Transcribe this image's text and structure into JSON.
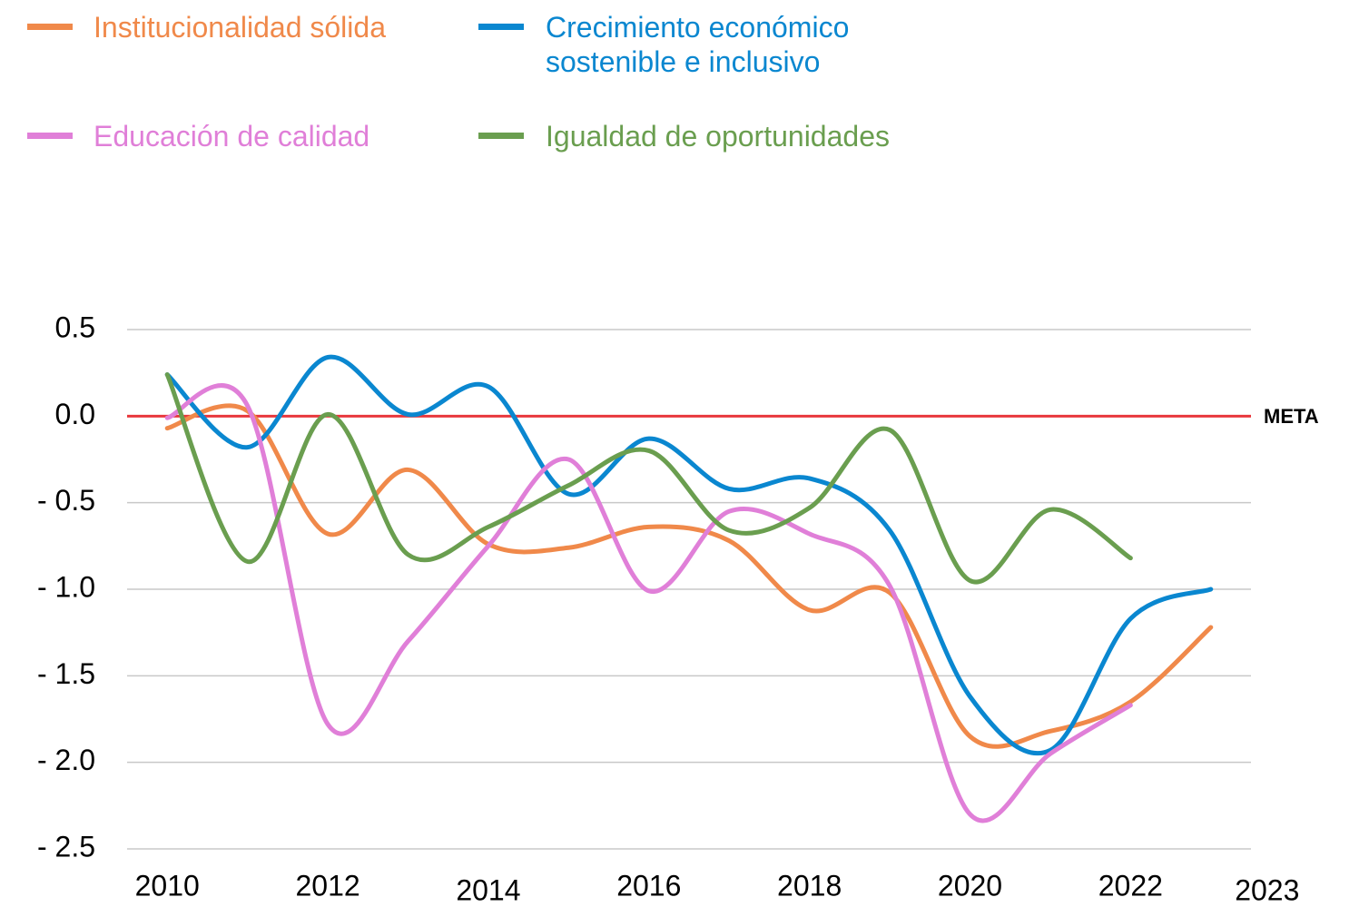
{
  "chart_data": {
    "type": "line",
    "x": [
      2010,
      2011,
      2012,
      2013,
      2014,
      2015,
      2016,
      2017,
      2018,
      2019,
      2020,
      2021,
      2022,
      2023
    ],
    "series": [
      {
        "name": "Institucionalidad sólida",
        "color": "#f0894a",
        "values": [
          -0.07,
          0.03,
          -0.68,
          -0.31,
          -0.74,
          -0.76,
          -0.64,
          -0.72,
          -1.12,
          -1.02,
          -1.85,
          -1.82,
          -1.65,
          -1.22
        ]
      },
      {
        "name": "Crecimiento económico sostenible e inclusivo",
        "color": "#0a87d0",
        "values": [
          0.24,
          -0.18,
          0.34,
          0.01,
          0.17,
          -0.45,
          -0.13,
          -0.42,
          -0.36,
          -0.66,
          -1.62,
          -1.93,
          -1.17,
          -1.0
        ]
      },
      {
        "name": "Educación de calidad",
        "color": "#e07fd8",
        "values": [
          -0.01,
          0.06,
          -1.78,
          -1.3,
          -0.75,
          -0.25,
          -1.01,
          -0.55,
          -0.68,
          -0.98,
          -2.3,
          -1.95,
          -1.67,
          null
        ]
      },
      {
        "name": "Igualdad de oportunidades",
        "color": "#6a9e4f",
        "values": [
          0.24,
          -0.84,
          0.01,
          -0.8,
          -0.64,
          -0.4,
          -0.2,
          -0.66,
          -0.53,
          -0.08,
          -0.95,
          -0.54,
          -0.82,
          null
        ]
      }
    ],
    "xlim": [
      2009.5,
      2023.5
    ],
    "xticks": [
      2010,
      2012,
      2014,
      2016,
      2018,
      2020,
      2022,
      2023
    ],
    "ylim": [
      -2.5,
      0.5
    ],
    "yticks": [
      0.5,
      {
        "value": 0,
        "label": "0.0"
      },
      {
        "value": -0.5,
        "label": "- 0.5"
      },
      {
        "value": -1,
        "label": "- 1.0"
      },
      {
        "value": -1.5,
        "label": "- 1.5"
      },
      {
        "value": -2,
        "label": "- 2.0"
      },
      {
        "value": -2.5,
        "label": "- 2.5"
      }
    ],
    "grid": true,
    "reference_line": {
      "value": 0,
      "label": "META",
      "color": "#e8383d"
    },
    "legend": "top-left"
  }
}
